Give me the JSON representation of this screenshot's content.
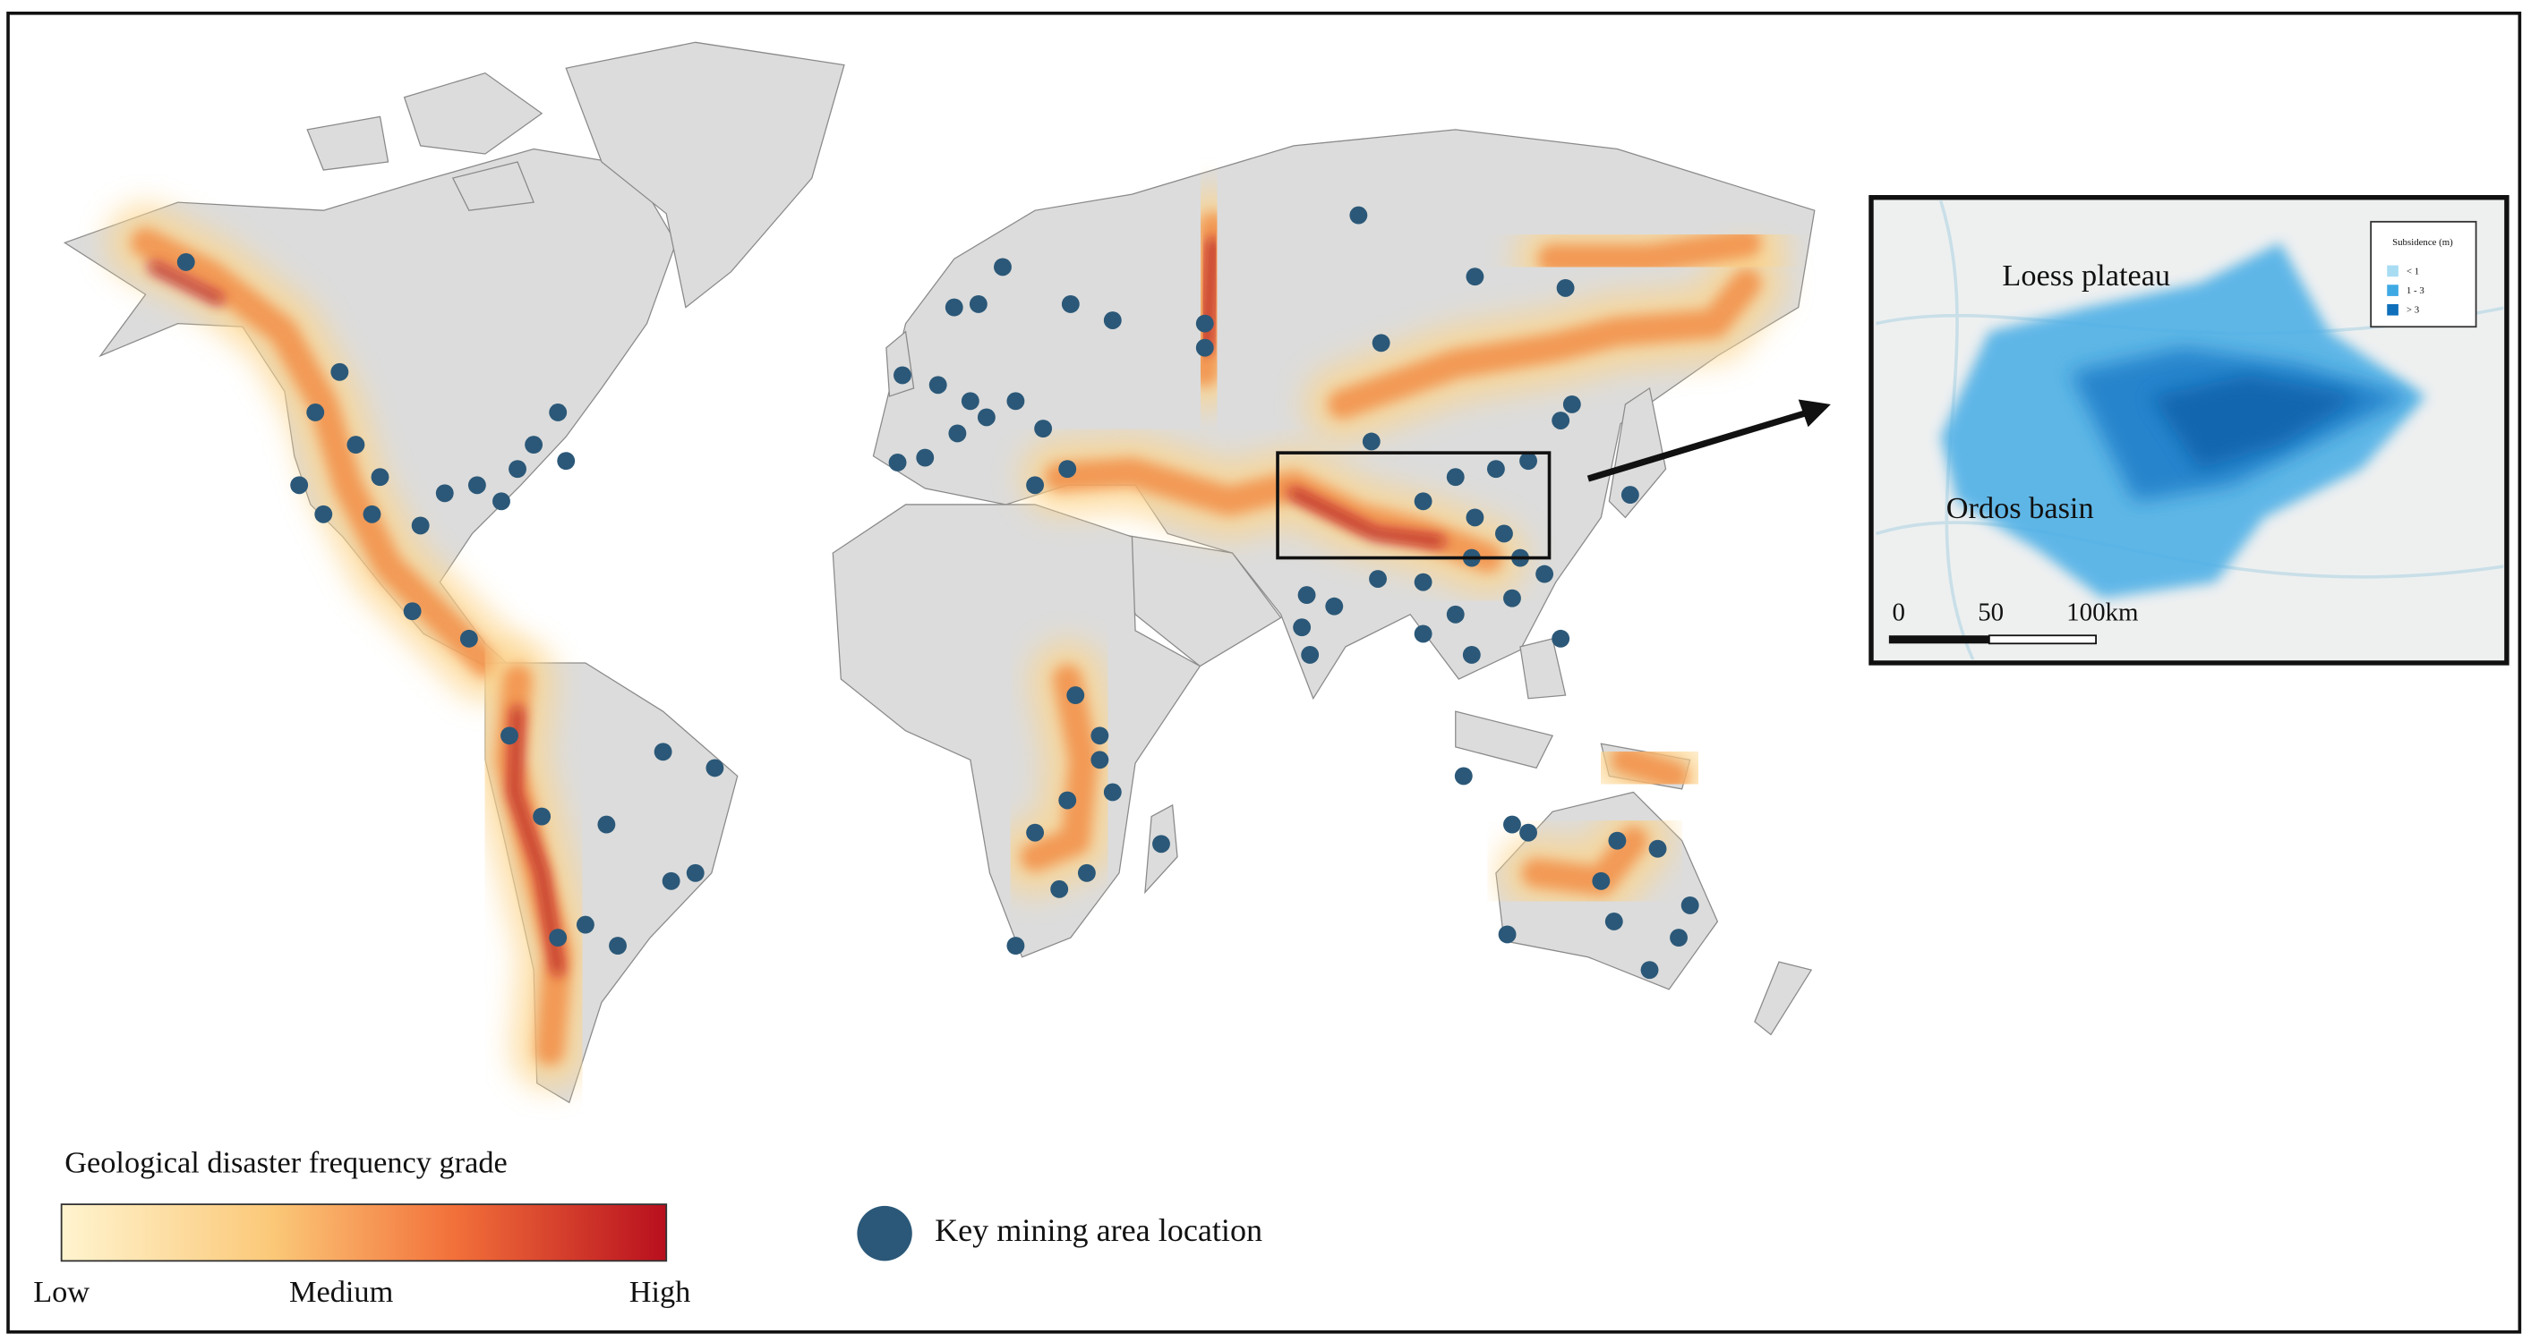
{
  "legend": {
    "title": "Geological disaster frequency grade",
    "scale_labels": [
      "Low",
      "Medium",
      "High"
    ],
    "mining_label": "Key mining area location"
  },
  "inset": {
    "labels": [
      "Loess plateau",
      "Ordos basin"
    ],
    "legend_title": "Subsidence (m)",
    "legend_items": [
      "< 1",
      "1 - 3",
      "> 3"
    ],
    "scale_bar": [
      "0",
      "50",
      "100km"
    ]
  }
}
